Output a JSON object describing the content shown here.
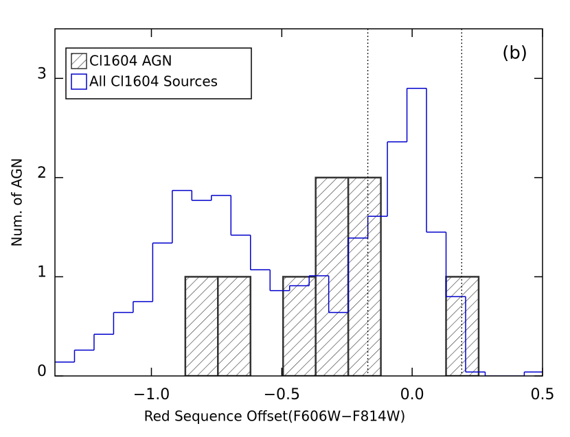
{
  "chart_data": {
    "type": "histogram",
    "xlabel": "Red Sequence Offset(F606W−F814W)",
    "ylabel": "Num. of AGN",
    "annotation": "(b)",
    "xlim": [
      -1.37,
      0.5
    ],
    "ylim": [
      0,
      3.5
    ],
    "xticks": [
      {
        "value": -1.0,
        "label": "−1.0"
      },
      {
        "value": -0.5,
        "label": "−0.5"
      },
      {
        "value": 0.0,
        "label": "0.0"
      },
      0.5
    ],
    "yticks": [
      0,
      1,
      2,
      3
    ],
    "vlines": [
      -0.17,
      0.19
    ],
    "legend": "upper left",
    "series": [
      {
        "name": "Cl1604 AGN",
        "style": "hatched",
        "color": "#333333",
        "bins": [
          -0.87,
          -0.745,
          -0.62,
          -0.495,
          -0.37,
          -0.245,
          -0.12,
          0.005,
          0.13,
          0.255
        ],
        "values": [
          1,
          1,
          0,
          1,
          2,
          2,
          0,
          0,
          1
        ]
      },
      {
        "name": "All Cl1604 Sources",
        "style": "step",
        "color": "#0000cc",
        "bins": [
          -1.37,
          -1.295,
          -1.22,
          -1.145,
          -1.07,
          -0.995,
          -0.92,
          -0.845,
          -0.77,
          -0.695,
          -0.62,
          -0.545,
          -0.47,
          -0.395,
          -0.32,
          -0.245,
          -0.17,
          -0.095,
          -0.02,
          0.055,
          0.13,
          0.205,
          0.28,
          0.355,
          0.43,
          0.5
        ],
        "values": [
          0.14,
          0.26,
          0.42,
          0.64,
          0.75,
          1.34,
          1.87,
          1.77,
          1.82,
          1.42,
          1.07,
          0.86,
          0.91,
          1.01,
          0.64,
          1.39,
          1.61,
          2.36,
          2.9,
          1.45,
          0.8,
          0.04,
          0,
          0,
          0.04
        ]
      }
    ]
  }
}
